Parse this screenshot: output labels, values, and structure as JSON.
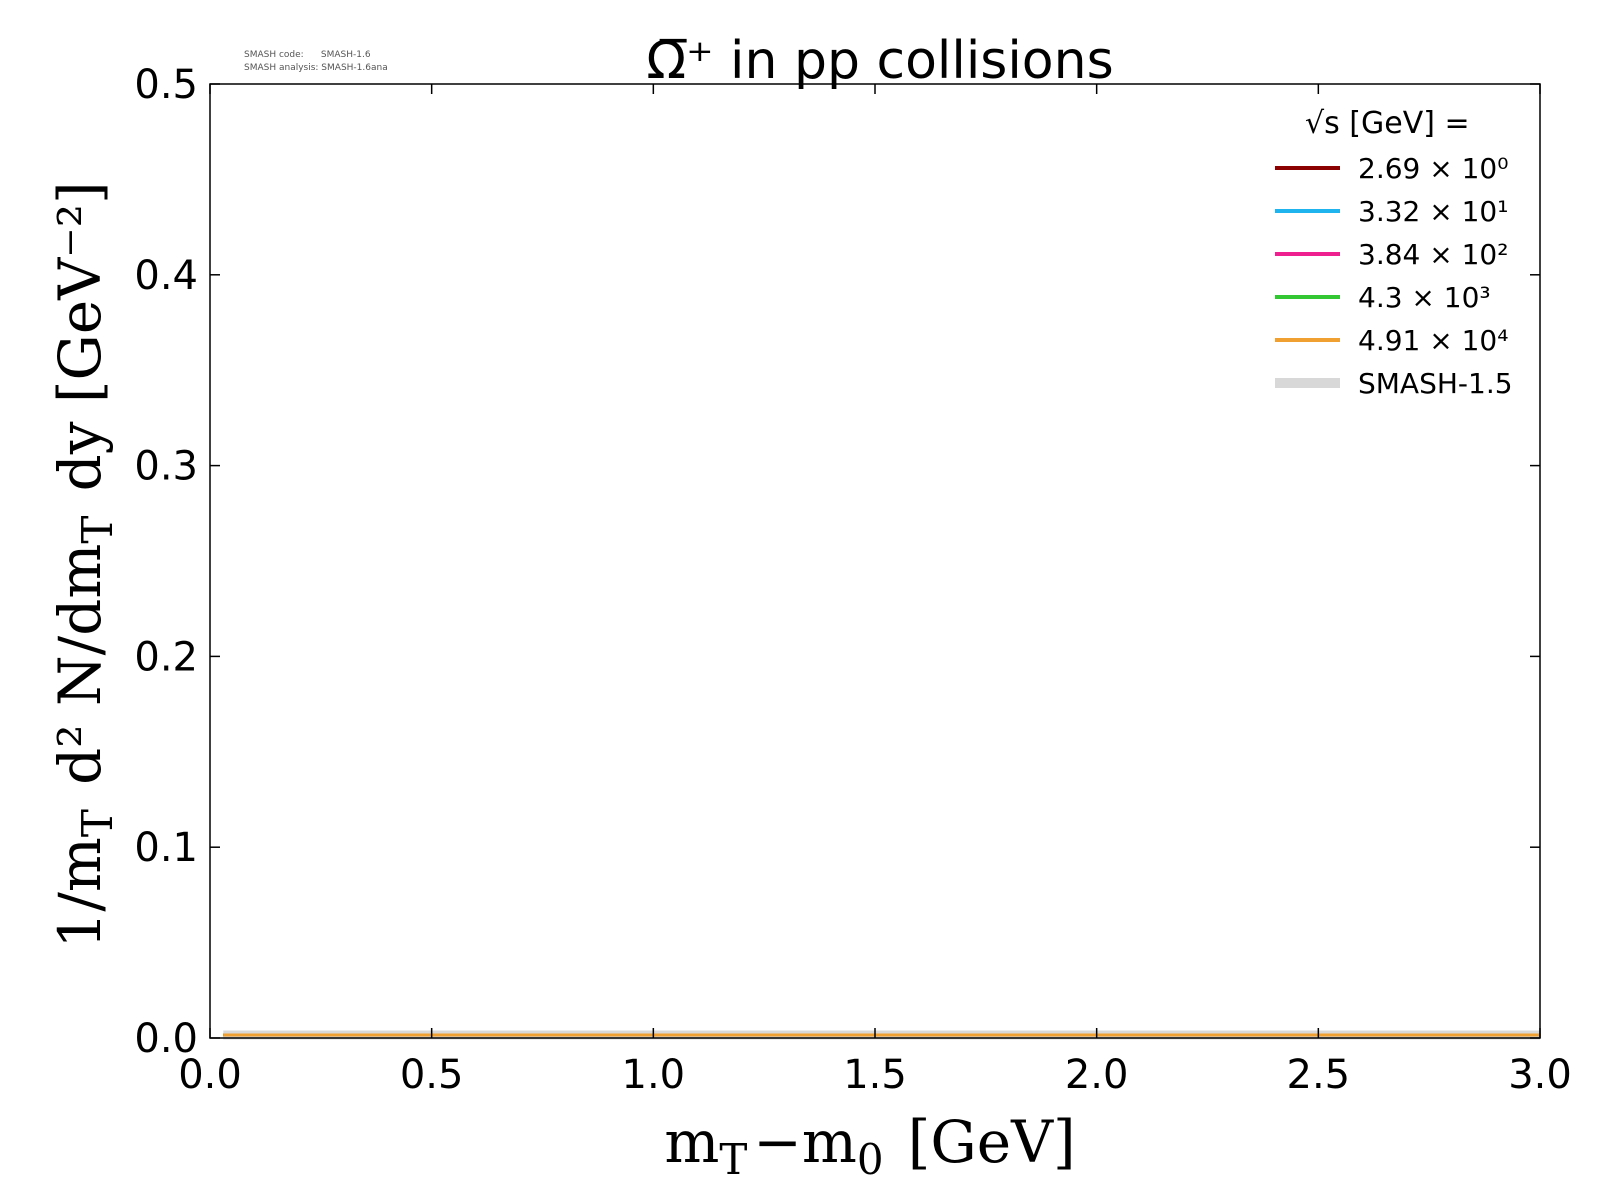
{
  "chart_data": {
    "type": "line",
    "title": "Ω̅⁺ in pp collisions",
    "xlabel": "m_T−m_0 [GeV]",
    "ylabel": "1/m_T d² N/dm_T dy [GeV⁻²]",
    "xlim": [
      0.0,
      3.0
    ],
    "ylim": [
      0.0,
      0.5
    ],
    "x_ticks": [
      "0.0",
      "0.5",
      "1.0",
      "1.5",
      "2.0",
      "2.5",
      "3.0"
    ],
    "y_ticks": [
      "0.0",
      "0.1",
      "0.2",
      "0.3",
      "0.4",
      "0.5"
    ],
    "grid": false,
    "legend_position": "top-right",
    "legend_title": "√s [GeV] =",
    "series": [
      {
        "name": "2.69 × 10⁰",
        "color": "#8b0000",
        "x": [
          0.03,
          3.0
        ],
        "y": [
          0.0005,
          0.0005
        ]
      },
      {
        "name": "3.32 × 10¹",
        "color": "#1fb4ee",
        "x": [
          0.03,
          3.0
        ],
        "y": [
          0.0005,
          0.0005
        ]
      },
      {
        "name": "3.84 × 10²",
        "color": "#ee2090",
        "x": [
          0.03,
          3.0
        ],
        "y": [
          0.0005,
          0.0005
        ]
      },
      {
        "name": "4.3 × 10³",
        "color": "#33c833",
        "x": [
          0.03,
          3.0
        ],
        "y": [
          0.0005,
          0.0005
        ]
      },
      {
        "name": "4.91 × 10⁴",
        "color": "#f0a030",
        "x": [
          0.03,
          3.0
        ],
        "y": [
          0.0005,
          0.0005
        ]
      }
    ],
    "reference": {
      "name": "SMASH-1.5",
      "color": "#d8d8d8",
      "x": [
        0.03,
        3.0
      ],
      "y": [
        0.0005,
        0.0005
      ]
    },
    "annotations": [
      "SMASH code:      SMASH-1.6",
      "SMASH analysis: SMASH-1.6ana"
    ]
  }
}
